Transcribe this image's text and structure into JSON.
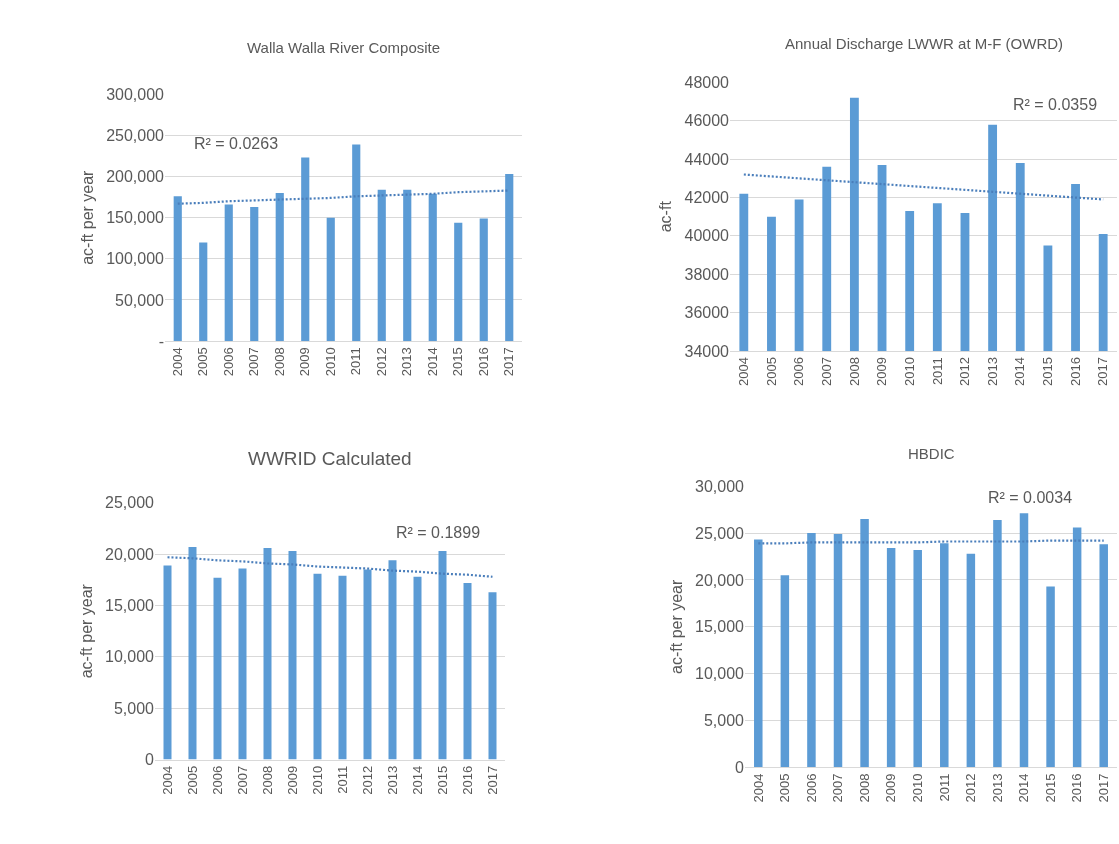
{
  "chart_data": [
    {
      "type": "bar",
      "title": "Walla Walla River Composite",
      "ylabel": "ac-ft per year",
      "x": [
        2004,
        2005,
        2006,
        2007,
        2008,
        2009,
        2010,
        2011,
        2012,
        2013,
        2014,
        2015,
        2016,
        2017
      ],
      "series": [
        {
          "color": "#5b9bd5",
          "values": [
            176000,
            120000,
            166000,
            163000,
            180000,
            223000,
            150000,
            239000,
            184000,
            184000,
            179000,
            144000,
            149000,
            203000
          ]
        },
        {
          "type": "line",
          "color": "#4a7ebb",
          "line_style": "dotted",
          "values": [
            167000,
            168000,
            170000,
            171000,
            172000,
            173000,
            174000,
            176000,
            177000,
            178000,
            179000,
            181000,
            182000,
            183000
          ]
        }
      ],
      "xlim": [
        2003.5,
        2017.5
      ],
      "xticks": [
        2004,
        2005,
        2006,
        2007,
        2008,
        2009,
        2010,
        2011,
        2012,
        2013,
        2014,
        2015,
        2016,
        2017
      ],
      "ylim": [
        0,
        300000
      ],
      "yticks": [
        {
          "value": 0,
          "label": "-"
        },
        {
          "value": 50000,
          "label": "50,000"
        },
        {
          "value": 100000,
          "label": "100,000"
        },
        {
          "value": 150000,
          "label": "150,000"
        },
        {
          "value": 200000,
          "label": "200,000"
        },
        {
          "value": 250000,
          "label": "250,000"
        },
        {
          "value": 300000,
          "label": "300,000"
        }
      ],
      "grid": "y",
      "annotations": [
        "R² = 0.0263"
      ]
    },
    {
      "type": "bar",
      "title": "Annual Discharge LWWR at M-F (OWRD)",
      "ylabel": "ac-ft",
      "x": [
        2004,
        2005,
        2006,
        2007,
        2008,
        2009,
        2010,
        2011,
        2012,
        2013,
        2014,
        2015,
        2016,
        2017
      ],
      "series": [
        {
          "color": "#5b9bd5",
          "values": [
            42200,
            41000,
            41900,
            43600,
            47200,
            43700,
            41300,
            41700,
            41200,
            45800,
            43800,
            39500,
            42700,
            40100
          ]
        },
        {
          "type": "line",
          "color": "#4a7ebb",
          "line_style": "dotted",
          "values": [
            43200,
            43100,
            43000,
            42900,
            42800,
            42700,
            42600,
            42500,
            42400,
            42300,
            42200,
            42100,
            42000,
            41900
          ]
        }
      ],
      "xlim": [
        2003.5,
        2017.5
      ],
      "xticks": [
        2004,
        2005,
        2006,
        2007,
        2008,
        2009,
        2010,
        2011,
        2012,
        2013,
        2014,
        2015,
        2016,
        2017
      ],
      "ylim": [
        34000,
        48000
      ],
      "yticks": [
        34000,
        36000,
        38000,
        40000,
        42000,
        44000,
        46000,
        48000
      ],
      "grid": "y",
      "annotations": [
        "R² = 0.0359"
      ]
    },
    {
      "type": "bar",
      "title": "WWRID Calculated",
      "ylabel": "ac-ft per year",
      "x": [
        2004,
        2005,
        2006,
        2007,
        2008,
        2009,
        2010,
        2011,
        2012,
        2013,
        2014,
        2015,
        2016,
        2017
      ],
      "series": [
        {
          "color": "#5b9bd5",
          "values": [
            18900,
            20700,
            17700,
            18600,
            20600,
            20300,
            18100,
            17900,
            18500,
            19400,
            17800,
            20300,
            17200,
            16300
          ]
        },
        {
          "type": "line",
          "color": "#4a7ebb",
          "line_style": "dotted",
          "values": [
            19700,
            19600,
            19400,
            19300,
            19100,
            19000,
            18800,
            18700,
            18600,
            18400,
            18300,
            18100,
            18000,
            17800
          ]
        }
      ],
      "xlim": [
        2003.5,
        2017.5
      ],
      "xticks": [
        2004,
        2005,
        2006,
        2007,
        2008,
        2009,
        2010,
        2011,
        2012,
        2013,
        2014,
        2015,
        2016,
        2017
      ],
      "ylim": [
        0,
        25000
      ],
      "yticks": [
        0,
        {
          "value": 5000,
          "label": "5,000"
        },
        {
          "value": 10000,
          "label": "10,000"
        },
        {
          "value": 15000,
          "label": "15,000"
        },
        {
          "value": 20000,
          "label": "20,000"
        },
        {
          "value": 25000,
          "label": "25,000"
        }
      ],
      "grid": "y",
      "annotations": [
        "R² = 0.1899"
      ]
    },
    {
      "type": "bar",
      "title": "HBDIC",
      "ylabel": "ac-ft per year",
      "x": [
        2004,
        2005,
        2006,
        2007,
        2008,
        2009,
        2010,
        2011,
        2012,
        2013,
        2014,
        2015,
        2016,
        2017
      ],
      "series": [
        {
          "color": "#5b9bd5",
          "values": [
            24300,
            20500,
            25000,
            24900,
            26500,
            23400,
            23200,
            23900,
            22800,
            26400,
            27100,
            19300,
            25600,
            23800
          ]
        },
        {
          "type": "line",
          "color": "#4a7ebb",
          "line_style": "dotted",
          "values": [
            23900,
            23900,
            24000,
            24000,
            24000,
            24000,
            24000,
            24100,
            24100,
            24100,
            24100,
            24200,
            24200,
            24200
          ]
        }
      ],
      "xlim": [
        2003.5,
        2017.5
      ],
      "xticks": [
        2004,
        2005,
        2006,
        2007,
        2008,
        2009,
        2010,
        2011,
        2012,
        2013,
        2014,
        2015,
        2016,
        2017
      ],
      "ylim": [
        0,
        30000
      ],
      "yticks": [
        0,
        {
          "value": 5000,
          "label": "5,000"
        },
        {
          "value": 10000,
          "label": "10,000"
        },
        {
          "value": 15000,
          "label": "15,000"
        },
        {
          "value": 20000,
          "label": "20,000"
        },
        {
          "value": 25000,
          "label": "25,000"
        },
        {
          "value": 30000,
          "label": "30,000"
        }
      ],
      "grid": "y",
      "annotations": [
        "R² = 0.0034"
      ]
    }
  ]
}
